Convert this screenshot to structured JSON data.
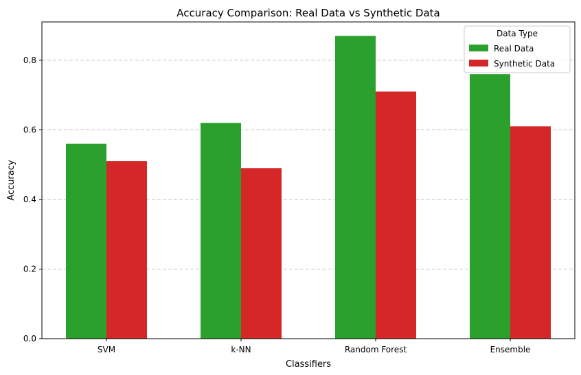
{
  "chart_data": {
    "type": "bar",
    "title": "Accuracy Comparison: Real Data vs Synthetic Data",
    "xlabel": "Classifiers",
    "ylabel": "Accuracy",
    "categories": [
      "SVM",
      "k-NN",
      "Random Forest",
      "Ensemble"
    ],
    "series": [
      {
        "name": "Real Data",
        "values": [
          0.56,
          0.62,
          0.87,
          0.76
        ],
        "color": "#2ca02c"
      },
      {
        "name": "Synthetic Data",
        "values": [
          0.51,
          0.49,
          0.71,
          0.61
        ],
        "color": "#d62728"
      }
    ],
    "ylim": [
      0,
      0.91
    ],
    "yticks": [
      "0.0",
      "0.2",
      "0.4",
      "0.6",
      "0.8"
    ],
    "grid": "y-dashed",
    "legend": {
      "title": "Data Type",
      "position": "top-right"
    }
  }
}
